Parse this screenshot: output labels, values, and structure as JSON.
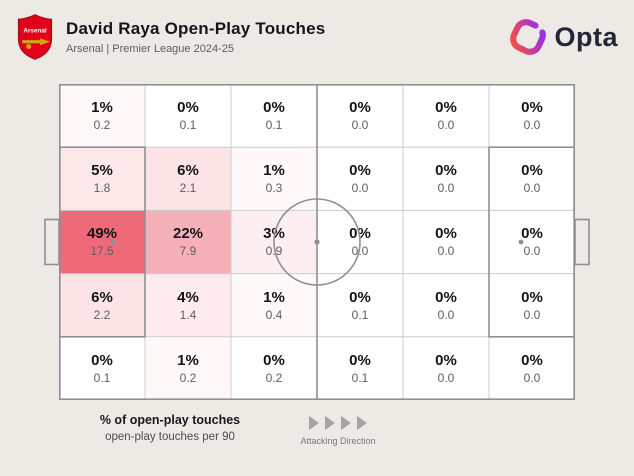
{
  "header": {
    "title": "David Raya Open-Play Touches",
    "subtitle": "Arsenal | Premier League 2024-25",
    "club_badge": "Arsenal crest",
    "club_badge_text": "Arsenal",
    "brand_name": "Opta"
  },
  "chart_data": {
    "type": "heatmap",
    "title": "David Raya Open-Play Touches",
    "description": "Share of open-play touches by pitch zone, 6 columns x 5 rows, attacking left to right",
    "columns": 6,
    "rows": 5,
    "max_pct": 49,
    "heat_min_color": "#ffffff",
    "heat_max_color": "#ee6a79",
    "cells_pct": [
      [
        1,
        0,
        0,
        0,
        0,
        0
      ],
      [
        5,
        6,
        1,
        0,
        0,
        0
      ],
      [
        49,
        22,
        3,
        0,
        0,
        0
      ],
      [
        6,
        4,
        1,
        0,
        0,
        0
      ],
      [
        0,
        1,
        0,
        0,
        0,
        0
      ]
    ],
    "cells_per90": [
      [
        "0.2",
        "0.1",
        "0.1",
        "0.0",
        "0.0",
        "0.0"
      ],
      [
        "1.8",
        "2.1",
        "0.3",
        "0.0",
        "0.0",
        "0.0"
      ],
      [
        "17.5",
        "7.9",
        "0.9",
        "0.0",
        "0.0",
        "0.0"
      ],
      [
        "2.2",
        "1.4",
        "0.4",
        "0.1",
        "0.0",
        "0.0"
      ],
      [
        "0.1",
        "0.2",
        "0.2",
        "0.1",
        "0.0",
        "0.0"
      ]
    ]
  },
  "legend": {
    "line1": "% of open-play touches",
    "line2": "open-play touches per 90",
    "attacking_direction": "Attacking Direction"
  },
  "colors": {
    "background": "#edeae6",
    "pitch_fill": "#ffffff",
    "pitch_line": "#8f8f92",
    "grid_line": "#cccccc",
    "heat_max": "#ee6a79",
    "arsenal_red": "#e2001a",
    "arsenal_gold": "#d4a60f",
    "brand_dark": "#232637",
    "brand_gradient_start": "#8e2dff",
    "brand_gradient_end": "#ff4e3a"
  }
}
